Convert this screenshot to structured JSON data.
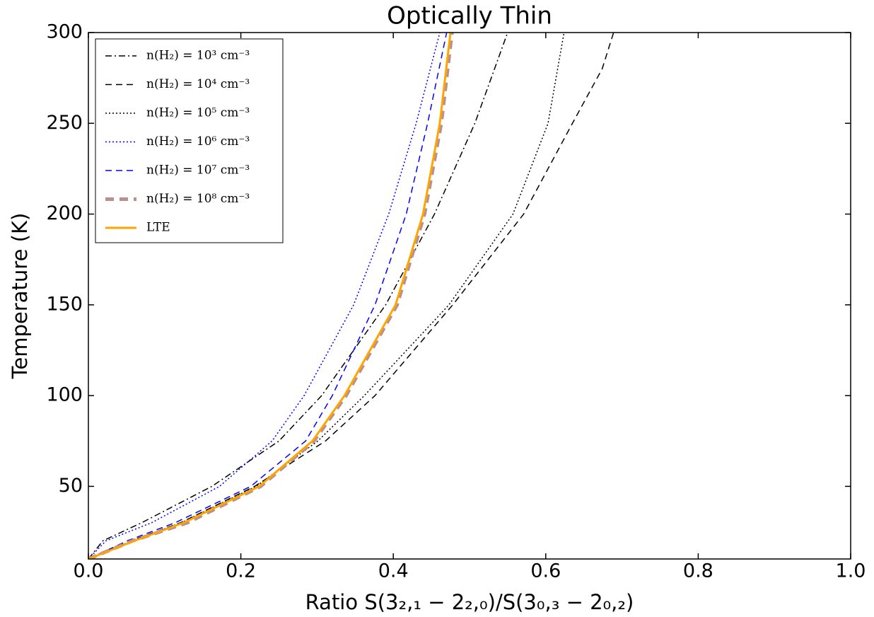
{
  "chart_data": {
    "type": "line",
    "title": "Optically Thin",
    "x_label": "Ratio S(3₂,₁ − 2₂,₀)/S(3₀,₃ − 2₀,₂)",
    "y_label": "Temperature (K)",
    "xlim": [
      0,
      1
    ],
    "ylim": [
      10,
      300
    ],
    "xticks": [
      {
        "value": 0,
        "label": "0.0"
      },
      0.2,
      0.4,
      0.6,
      0.8,
      {
        "value": 1,
        "label": "1.0"
      }
    ],
    "yticks": [
      50,
      100,
      150,
      200,
      250,
      300
    ],
    "legend": "upper left",
    "series": [
      {
        "name": "n(H₂) = 10³ cm⁻³",
        "color": "#000000",
        "style": "dashdot",
        "x": [
          0,
          0.019,
          0.07,
          0.162,
          0.25,
          0.306,
          0.39,
          0.454,
          0.507,
          0.55
        ],
        "values": [
          10,
          20,
          30,
          50,
          75,
          100,
          150,
          200,
          250,
          300
        ]
      },
      {
        "name": "n(H₂) = 10⁴ cm⁻³",
        "color": "#000000",
        "style": "dashed",
        "x": [
          0,
          0.056,
          0.121,
          0.218,
          0.311,
          0.376,
          0.478,
          0.571,
          0.635,
          0.674,
          0.689
        ],
        "values": [
          10,
          20,
          30,
          50,
          75,
          100,
          150,
          200,
          250,
          280,
          300
        ]
      },
      {
        "name": "n(H₂) = 10⁵ cm⁻³",
        "color": "#000000",
        "style": "dotted",
        "x": [
          0,
          0.057,
          0.122,
          0.22,
          0.301,
          0.362,
          0.473,
          0.557,
          0.603,
          0.624
        ],
        "values": [
          10,
          20,
          30,
          50,
          75,
          100,
          150,
          200,
          250,
          300
        ]
      },
      {
        "name": "n(H₂) = 10⁶ cm⁻³",
        "color": "#0000ff",
        "style": "dotted",
        "x": [
          0,
          0.023,
          0.083,
          0.172,
          0.241,
          0.283,
          0.348,
          0.394,
          0.43,
          0.461
        ],
        "values": [
          10,
          20,
          30,
          50,
          75,
          100,
          150,
          200,
          250,
          300
        ]
      },
      {
        "name": "n(H₂) = 10⁷ cm⁻³",
        "color": "#0000ff",
        "style": "dashed",
        "x": [
          0,
          0.051,
          0.114,
          0.213,
          0.285,
          0.32,
          0.376,
          0.417,
          0.445,
          0.47
        ],
        "values": [
          10,
          20,
          30,
          50,
          75,
          100,
          150,
          200,
          250,
          300
        ]
      },
      {
        "name": "n(H₂) = 10⁸ cm⁻³",
        "color": "#bc8f8f",
        "style": "thickdashed",
        "x": [
          0,
          0.058,
          0.13,
          0.226,
          0.296,
          0.338,
          0.405,
          0.441,
          0.463,
          0.477
        ],
        "values": [
          10,
          20,
          30,
          50,
          75,
          100,
          150,
          200,
          250,
          300
        ]
      },
      {
        "name": "LTE",
        "color": "#ffa500",
        "style": "solid",
        "x": [
          0,
          0.06,
          0.125,
          0.224,
          0.294,
          0.336,
          0.403,
          0.439,
          0.461,
          0.475
        ],
        "values": [
          10,
          20,
          30,
          50,
          75,
          100,
          150,
          200,
          250,
          300
        ]
      }
    ]
  }
}
